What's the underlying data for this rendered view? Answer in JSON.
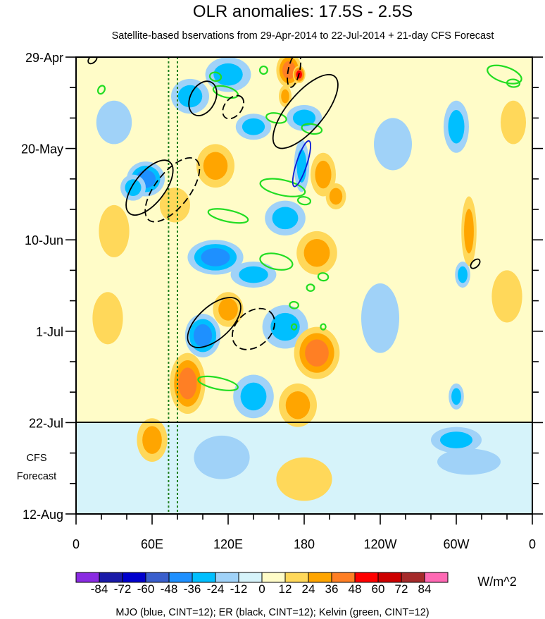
{
  "chart_data": {
    "type": "heatmap",
    "title": "OLR anomalies: 17.5S - 2.5S",
    "subtitle": "Satellite-based bservations from 29-Apr-2014 to 22-Jul-2014 + 21-day CFS Forecast",
    "x_ticks": [
      "0",
      "60E",
      "120E",
      "180",
      "120W",
      "60W",
      "0"
    ],
    "x_tick_lon": [
      0,
      60,
      120,
      180,
      240,
      300,
      360
    ],
    "y_ticks": [
      "29-Apr",
      "20-May",
      "10-Jun",
      "1-Jul",
      "22-Jul",
      "12-Aug"
    ],
    "y_tick_day": [
      0,
      21,
      42,
      63,
      84,
      105
    ],
    "forecast_label": [
      "CFS",
      "Forecast"
    ],
    "forecast_start_day": 84,
    "colorbar": {
      "labels": [
        "-84",
        "-72",
        "-60",
        "-48",
        "-36",
        "-24",
        "-12",
        "0",
        "12",
        "24",
        "36",
        "48",
        "60",
        "72",
        "84"
      ],
      "colors": [
        "#8a2be2",
        "#1a1aa8",
        "#0000cd",
        "#3a5fcd",
        "#1e90ff",
        "#00bfff",
        "#a0d2f8",
        "#d6f3fa",
        "#fffcc8",
        "#ffd85a",
        "#ffa500",
        "#ff7f24",
        "#ff0000",
        "#cd0000",
        "#a52a2a",
        "#ff69b4"
      ],
      "units": "W/m^2"
    },
    "footer": "MJO (blue, CINT=12); ER (black, CINT=12); Kelvin (green, CINT=12)",
    "reference_lines_lon": [
      73,
      80
    ],
    "mjo_contours": [
      {
        "lon": 178,
        "day": 24.5,
        "half_len": 5.5,
        "half_w": 0.55,
        "angle": 72
      }
    ],
    "er_contours": [
      {
        "lon": 13,
        "day": 0.5,
        "half_len": 1.2,
        "half_w": 0.35,
        "angle": 45,
        "dashed": false
      },
      {
        "lon": 172,
        "day": 3,
        "half_len": 4,
        "half_w": 0.6,
        "angle": 78,
        "dashed": true
      },
      {
        "lon": 100,
        "day": 9.5,
        "half_len": 4.2,
        "half_w": 1.3,
        "angle": 62,
        "dashed": false
      },
      {
        "lon": 124,
        "day": 11.5,
        "half_len": 3,
        "half_w": 0.9,
        "angle": 52,
        "dashed": true
      },
      {
        "lon": 181,
        "day": 12.5,
        "half_len": 10.5,
        "half_w": 1.9,
        "angle": 50,
        "dashed": false
      },
      {
        "lon": 58,
        "day": 30,
        "half_len": 7.5,
        "half_w": 1.6,
        "angle": 52,
        "dashed": false
      },
      {
        "lon": 76,
        "day": 30.5,
        "half_len": 8.8,
        "half_w": 1.8,
        "angle": 52,
        "dashed": true
      },
      {
        "lon": 315,
        "day": 47.5,
        "half_len": 1.3,
        "half_w": 0.35,
        "angle": 45,
        "dashed": false
      },
      {
        "lon": 109,
        "day": 61,
        "half_len": 7.5,
        "half_w": 1.7,
        "angle": 42,
        "dashed": false
      },
      {
        "lon": 140,
        "day": 62.5,
        "half_len": 5.5,
        "half_w": 1.8,
        "angle": 42,
        "dashed": true
      }
    ],
    "kelvin_contours": [
      {
        "lon": 20,
        "day": 7.5,
        "half_len": 2.5,
        "half_w": 0.45,
        "angle": 28
      },
      {
        "lon": 110,
        "day": 4.5,
        "half_len": 4.5,
        "half_w": 0.45,
        "angle": 10
      },
      {
        "lon": 148,
        "day": 3,
        "half_len": 3,
        "half_w": 0.4,
        "angle": 10
      },
      {
        "lon": 118,
        "day": 8,
        "half_len": 10,
        "half_w": 0.55,
        "angle": 15
      },
      {
        "lon": 158,
        "day": 14,
        "half_len": 8,
        "half_w": 0.5,
        "angle": 10
      },
      {
        "lon": 186,
        "day": 16.5,
        "half_len": 8,
        "half_w": 0.5,
        "angle": 10
      },
      {
        "lon": 338,
        "day": 4,
        "half_len": 14,
        "half_w": 0.8,
        "angle": 18
      },
      {
        "lon": 345,
        "day": 6,
        "half_len": 5,
        "half_w": 0.4,
        "angle": 5
      },
      {
        "lon": 163,
        "day": 30,
        "half_len": 18,
        "half_w": 0.8,
        "angle": 12
      },
      {
        "lon": 180,
        "day": 33,
        "half_len": 5,
        "half_w": 0.4,
        "angle": 8
      },
      {
        "lon": 120,
        "day": 36.5,
        "half_len": 16,
        "half_w": 0.6,
        "angle": 12
      },
      {
        "lon": 158,
        "day": 47,
        "half_len": 13,
        "half_w": 0.8,
        "angle": 12
      },
      {
        "lon": 195,
        "day": 50.5,
        "half_len": 4,
        "half_w": 0.4,
        "angle": 8
      },
      {
        "lon": 185,
        "day": 53,
        "half_len": 3,
        "half_w": 0.35,
        "angle": 5
      },
      {
        "lon": 172,
        "day": 57,
        "half_len": 3.5,
        "half_w": 0.35,
        "angle": 5
      },
      {
        "lon": 172,
        "day": 62,
        "half_len": 2,
        "half_w": 0.3,
        "angle": 5
      },
      {
        "lon": 195,
        "day": 62,
        "half_len": 2,
        "half_w": 0.3,
        "angle": 5
      },
      {
        "lon": 112,
        "day": 75,
        "half_len": 16,
        "half_w": 0.6,
        "angle": 12
      }
    ],
    "anomaly_blobs": [
      {
        "lon": 168,
        "day": 3,
        "rlon": 10,
        "rday": 4,
        "value": 44
      },
      {
        "lon": 176,
        "day": 4,
        "rlon": 5,
        "rday": 2,
        "value": 55
      },
      {
        "lon": 165,
        "day": 9,
        "rlon": 5,
        "rday": 2.5,
        "value": 30
      },
      {
        "lon": 120,
        "day": 4,
        "rlon": 18,
        "rday": 4,
        "value": -28
      },
      {
        "lon": 90,
        "day": 9,
        "rlon": 15,
        "rday": 4,
        "value": -34
      },
      {
        "lon": 140,
        "day": 16,
        "rlon": 14,
        "rday": 3,
        "value": -30
      },
      {
        "lon": 180,
        "day": 14,
        "rlon": 14,
        "rday": 3,
        "value": -30
      },
      {
        "lon": 178,
        "day": 25,
        "rlon": 6,
        "rday": 6,
        "value": -24
      },
      {
        "lon": 55,
        "day": 28,
        "rlon": 15,
        "rday": 4,
        "value": -38
      },
      {
        "lon": 45,
        "day": 30,
        "rlon": 10,
        "rday": 3,
        "value": -30
      },
      {
        "lon": 110,
        "day": 25,
        "rlon": 15,
        "rday": 5,
        "value": 24
      },
      {
        "lon": 195,
        "day": 27,
        "rlon": 10,
        "rday": 5,
        "value": 26
      },
      {
        "lon": 205,
        "day": 32,
        "rlon": 8,
        "rday": 3,
        "value": 24
      },
      {
        "lon": 78,
        "day": 34,
        "rlon": 12,
        "rday": 4,
        "value": 22
      },
      {
        "lon": 165,
        "day": 37,
        "rlon": 16,
        "rday": 4,
        "value": -30
      },
      {
        "lon": 110,
        "day": 46,
        "rlon": 22,
        "rday": 4,
        "value": -40
      },
      {
        "lon": 140,
        "day": 50,
        "rlon": 18,
        "rday": 3,
        "value": -30
      },
      {
        "lon": 190,
        "day": 45,
        "rlon": 16,
        "rday": 5,
        "value": 30
      },
      {
        "lon": 120,
        "day": 58,
        "rlon": 12,
        "rday": 4,
        "value": 26
      },
      {
        "lon": 100,
        "day": 64,
        "rlon": 14,
        "rday": 5,
        "value": -40
      },
      {
        "lon": 165,
        "day": 62,
        "rlon": 18,
        "rday": 5,
        "value": -34
      },
      {
        "lon": 190,
        "day": 68,
        "rlon": 18,
        "rday": 6,
        "value": 36
      },
      {
        "lon": 88,
        "day": 75,
        "rlon": 14,
        "rday": 7,
        "value": 36
      },
      {
        "lon": 140,
        "day": 78,
        "rlon": 16,
        "rday": 5,
        "value": -26
      },
      {
        "lon": 175,
        "day": 80,
        "rlon": 15,
        "rday": 5,
        "value": 26
      },
      {
        "lon": 60,
        "day": 88,
        "rlon": 12,
        "rday": 5,
        "value": 24
      },
      {
        "lon": 115,
        "day": 92,
        "rlon": 22,
        "rday": 5,
        "value": -20
      },
      {
        "lon": 180,
        "day": 97,
        "rlon": 22,
        "rday": 5,
        "value": 16
      },
      {
        "lon": 300,
        "day": 88,
        "rlon": 20,
        "rday": 3,
        "value": -24
      },
      {
        "lon": 310,
        "day": 93,
        "rlon": 25,
        "rday": 3,
        "value": -20
      },
      {
        "lon": 300,
        "day": 16,
        "rlon": 10,
        "rday": 6,
        "value": -26
      },
      {
        "lon": 310,
        "day": 40,
        "rlon": 6,
        "rday": 8,
        "value": 24
      },
      {
        "lon": 305,
        "day": 50,
        "rlon": 6,
        "rday": 3,
        "value": -30
      },
      {
        "lon": 300,
        "day": 78,
        "rlon": 6,
        "rday": 3,
        "value": -34
      },
      {
        "lon": 30,
        "day": 40,
        "rlon": 12,
        "rday": 6,
        "value": 14
      },
      {
        "lon": 25,
        "day": 60,
        "rlon": 12,
        "rday": 6,
        "value": 16
      },
      {
        "lon": 30,
        "day": 15,
        "rlon": 14,
        "rday": 5,
        "value": -20
      },
      {
        "lon": 345,
        "day": 15,
        "rlon": 10,
        "rday": 5,
        "value": 14
      },
      {
        "lon": 340,
        "day": 55,
        "rlon": 12,
        "rday": 6,
        "value": 14
      },
      {
        "lon": 250,
        "day": 20,
        "rlon": 15,
        "rday": 6,
        "value": -14
      },
      {
        "lon": 240,
        "day": 60,
        "rlon": 15,
        "rday": 8,
        "value": -14
      }
    ]
  }
}
